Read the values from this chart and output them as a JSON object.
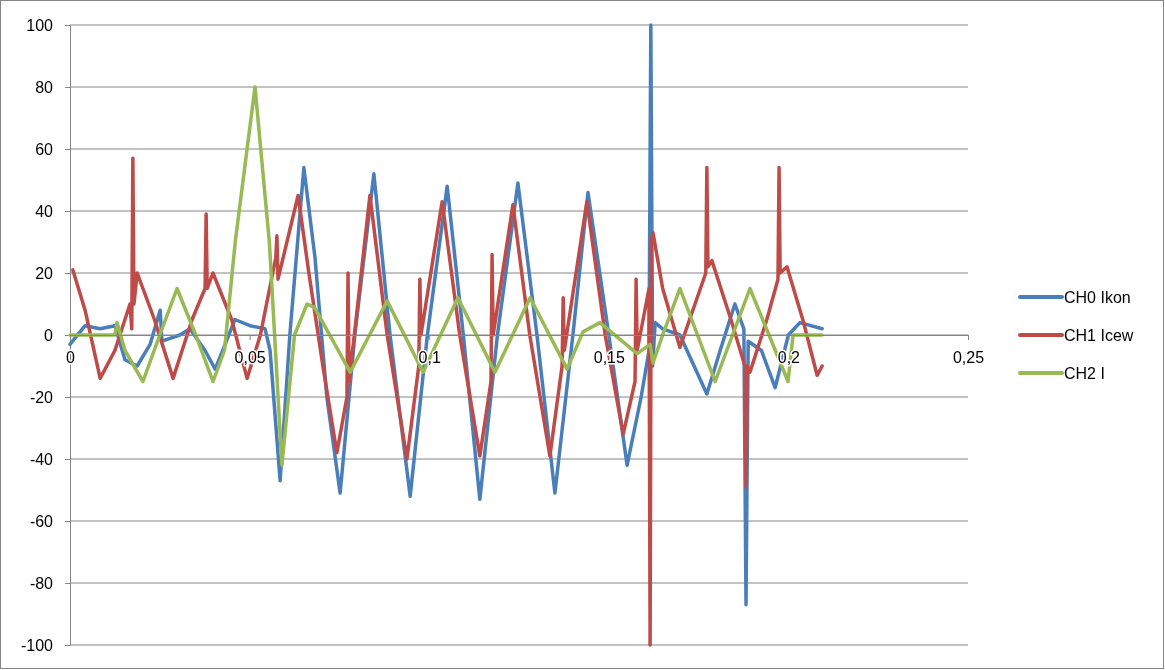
{
  "chart_data": {
    "type": "line",
    "xlim": [
      0,
      0.25
    ],
    "ylim": [
      -100,
      100
    ],
    "xticks": [
      0,
      {
        "value": 0.05,
        "label": "0,05"
      },
      {
        "value": 0.1,
        "label": "0,1"
      },
      {
        "value": 0.15,
        "label": "0,15"
      },
      {
        "value": 0.2,
        "label": "0,2"
      },
      {
        "value": 0.25,
        "label": "0,25"
      }
    ],
    "yticks": [
      -100,
      -80,
      -60,
      -40,
      -20,
      0,
      20,
      40,
      60,
      80,
      100
    ],
    "grid": "y",
    "legend": "right",
    "marker": "none",
    "line_style": "solid",
    "series": [
      {
        "name": "CH0 Ikon",
        "color": "#4a7ebb",
        "x": [
          0,
          0.0042,
          0.0084,
          0.0125,
          0.0153,
          0.0187,
          0.0223,
          0.0251,
          0.0256,
          0.0306,
          0.0334,
          0.0376,
          0.0404,
          0.0432,
          0.0459,
          0.0501,
          0.0543,
          0.0557,
          0.0585,
          0.0612,
          0.0651,
          0.0682,
          0.0715,
          0.0752,
          0.0793,
          0.0846,
          0.0891,
          0.0947,
          0.0995,
          0.105,
          0.1095,
          0.1141,
          0.119,
          0.1247,
          0.13,
          0.135,
          0.14,
          0.1442,
          0.15,
          0.1551,
          0.159,
          0.1612,
          0.1617,
          0.1622,
          0.1629,
          0.165,
          0.1698,
          0.1773,
          0.181,
          0.1851,
          0.1876,
          0.1882,
          0.1888,
          0.1925,
          0.1963,
          0.2,
          0.2032,
          0.2094
        ],
        "values": [
          -3,
          3,
          2,
          3,
          -8,
          -10,
          -3,
          8,
          -2,
          0,
          2,
          -5,
          -11,
          -3,
          5,
          3,
          2,
          -5,
          -47,
          0,
          54,
          25,
          -20,
          -51,
          0,
          52,
          0,
          -52,
          0,
          48,
          0,
          -53,
          0,
          49,
          0,
          -51,
          0,
          46,
          0,
          -42,
          -20,
          -5,
          100,
          -10,
          4,
          2,
          0,
          -19,
          -5,
          10,
          2,
          -87,
          -2,
          -5,
          -17,
          0,
          4,
          2
        ]
      },
      {
        "name": "CH1 Icew",
        "color": "#be4b48",
        "x": [
          0.0008,
          0.0042,
          0.0084,
          0.0125,
          0.0167,
          0.0172,
          0.0175,
          0.0178,
          0.0187,
          0.0235,
          0.0287,
          0.034,
          0.0376,
          0.0379,
          0.0382,
          0.0398,
          0.045,
          0.0493,
          0.053,
          0.0573,
          0.0576,
          0.0579,
          0.0635,
          0.0665,
          0.0704,
          0.0743,
          0.0771,
          0.0774,
          0.0777,
          0.0835,
          0.0883,
          0.0938,
          0.0971,
          0.0974,
          0.0977,
          0.1036,
          0.1085,
          0.1141,
          0.1172,
          0.1175,
          0.1178,
          0.1233,
          0.128,
          0.1336,
          0.137,
          0.1373,
          0.1376,
          0.1439,
          0.149,
          0.154,
          0.1573,
          0.1576,
          0.1579,
          0.1612,
          0.1615,
          0.1618,
          0.1623,
          0.165,
          0.1698,
          0.174,
          0.177,
          0.1773,
          0.1776,
          0.1787,
          0.184,
          0.1879,
          0.1882,
          0.1885,
          0.1893,
          0.194,
          0.1971,
          0.1974,
          0.1977,
          0.1996,
          0.204,
          0.208,
          0.2094
        ],
        "values": [
          21,
          8,
          -14,
          -5,
          10,
          2,
          57,
          10,
          20,
          5,
          -14,
          5,
          15,
          39,
          15,
          20,
          5,
          -14,
          0,
          25,
          32,
          18,
          45,
          20,
          -10,
          -38,
          -20,
          20,
          -15,
          45,
          0,
          -40,
          -10,
          18,
          0,
          43,
          0,
          -39,
          -15,
          26,
          0,
          42,
          0,
          -39,
          -10,
          12,
          -5,
          43,
          0,
          -32,
          -15,
          18,
          -5,
          15,
          -100,
          30,
          33,
          15,
          -4,
          10,
          20,
          54,
          22,
          24,
          5,
          -10,
          -49,
          -10,
          -12,
          5,
          18,
          54,
          20,
          22,
          5,
          -13,
          -10
        ]
      },
      {
        "name": "CH2 I",
        "color": "#98b954",
        "x": [
          0,
          0.0125,
          0.0131,
          0.0153,
          0.0203,
          0.025,
          0.0298,
          0.035,
          0.0398,
          0.043,
          0.046,
          0.0515,
          0.0555,
          0.059,
          0.0625,
          0.066,
          0.068,
          0.0704,
          0.078,
          0.0883,
          0.0983,
          0.108,
          0.1183,
          0.1281,
          0.1384,
          0.1428,
          0.1475,
          0.1579,
          0.1615,
          0.1623,
          0.165,
          0.1698,
          0.1796,
          0.1893,
          0.1999,
          0.2013,
          0.2094
        ],
        "values": [
          0,
          0,
          4,
          -5,
          -15,
          0,
          15,
          0,
          -15,
          -5,
          30,
          80,
          30,
          -42,
          0,
          10,
          9,
          4,
          -12,
          11,
          -12,
          12,
          -12,
          12,
          -11,
          1,
          4,
          -6,
          -3,
          -9,
          0,
          15,
          -15,
          15,
          -15,
          0,
          0
        ]
      }
    ]
  }
}
